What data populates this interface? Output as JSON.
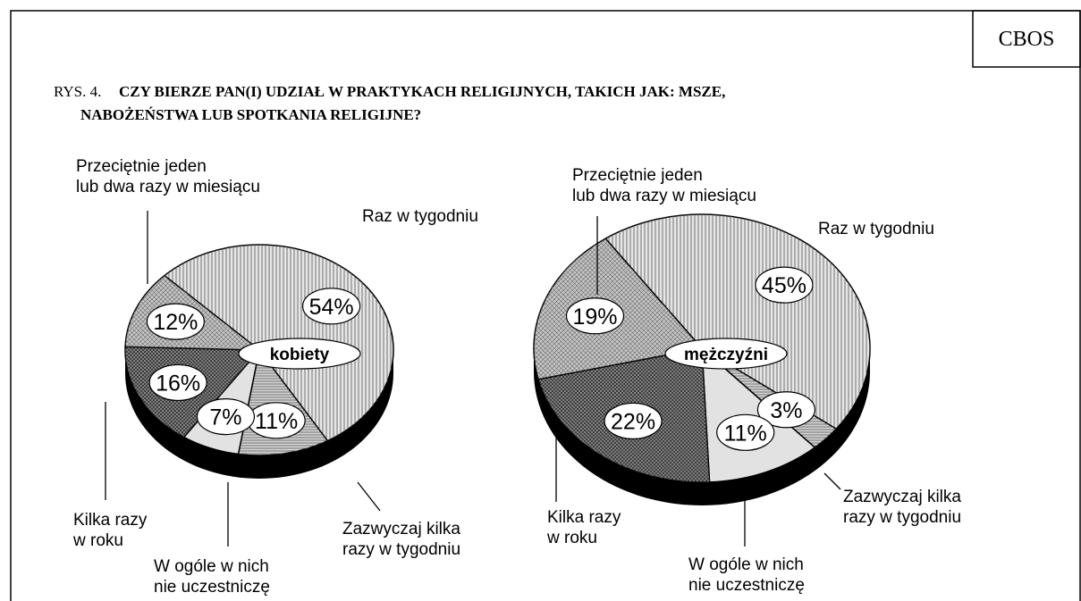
{
  "source": "CBOS",
  "figure_label": "RYS. 4.",
  "title": "CZY BIERZE PAN(I) UDZIAŁ W PRAKTYKACH RELIGIJNYCH, TAKICH JAK: MSZE,\nNABOŻEŃSTWA LUB SPOTKANIA RELIGIJNE?",
  "chart_data": [
    {
      "type": "pie",
      "center_label": "kobiety",
      "categories": [
        "Raz w tygodniu",
        "Zazwyczaj kilka\nrazy w tygodniu",
        "W ogóle w nich\nnie uczestniczę",
        "Kilka razy\nw roku",
        "Przeciętnie jeden\nlub dwa razy w miesiącu"
      ],
      "values": [
        54,
        11,
        7,
        16,
        12
      ],
      "value_labels": [
        "54%",
        "11%",
        "7%",
        "16%",
        "12%"
      ],
      "colors": [
        "#e6e6e6",
        "#d4d4d4",
        "#e2e2e2",
        "#8a8a8a",
        "#c6c6c6"
      ]
    },
    {
      "type": "pie",
      "center_label": "mężczyźni",
      "categories": [
        "Raz w tygodniu",
        "Zazwyczaj kilka\nrazy w tygodniu",
        "W ogóle w nich\nnie uczestniczę",
        "Kilka razy\nw roku",
        "Przeciętnie jeden\nlub dwa razy w miesiącu"
      ],
      "values": [
        45,
        3,
        11,
        22,
        19
      ],
      "value_labels": [
        "45%",
        "3%",
        "11%",
        "22%",
        "19%"
      ],
      "colors": [
        "#e6e6e6",
        "#d4d4d4",
        "#e2e2e2",
        "#8a8a8a",
        "#c6c6c6"
      ]
    }
  ]
}
